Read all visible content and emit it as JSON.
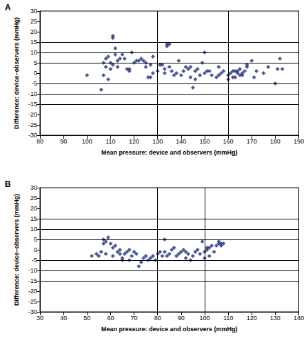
{
  "chart_data": [
    {
      "type": "scatter",
      "title": "A",
      "xlabel": "Mean pressure: device and observers (mmHg)",
      "ylabel": "Difference: device–observers (mmHg)",
      "x": [
        100,
        106,
        107,
        107,
        108,
        108,
        109,
        109,
        110,
        110,
        111,
        111,
        111,
        112,
        112,
        113,
        113,
        114,
        115,
        116,
        117,
        118,
        118,
        119,
        120,
        121,
        122,
        123,
        124,
        125,
        125,
        126,
        127,
        127,
        128,
        128,
        130,
        131,
        132,
        133,
        133,
        134,
        134,
        135,
        135,
        136,
        137,
        138,
        139,
        140,
        141,
        142,
        143,
        144,
        144,
        145,
        146,
        146,
        147,
        148,
        149,
        150,
        150,
        151,
        152,
        153,
        155,
        156,
        156,
        157,
        158,
        160,
        160,
        161,
        162,
        162,
        163,
        163,
        164,
        164,
        165,
        165,
        166,
        166,
        167,
        168,
        168,
        170,
        171,
        172,
        175,
        177,
        180,
        181,
        182,
        183
      ],
      "values": [
        -1,
        -8,
        -1,
        5,
        3,
        7,
        -3,
        8,
        5,
        2,
        4,
        17,
        18,
        12,
        9,
        6,
        3,
        7,
        9,
        7,
        2,
        1,
        2,
        10,
        5,
        6,
        6,
        7,
        6,
        3,
        5,
        -2,
        -2,
        4,
        8,
        0,
        1,
        4,
        4,
        2,
        0,
        14,
        13,
        14,
        3,
        1,
        -1,
        0,
        6,
        -1,
        1,
        3,
        2,
        3,
        -2,
        -7,
        1,
        -3,
        2,
        -1,
        5,
        10,
        0,
        1,
        1,
        -1,
        -2,
        -1,
        3,
        0,
        1,
        -1,
        -3,
        0,
        1,
        -2,
        1,
        -2,
        0,
        1,
        -1,
        2,
        0,
        -1,
        1,
        4,
        3,
        6,
        -2,
        1,
        0,
        3,
        -5,
        2,
        7,
        2
      ],
      "color": "#1f2f7a",
      "marker": "diamond",
      "grid": false,
      "xlim": [
        80,
        190
      ],
      "xticks": [
        80,
        90,
        100,
        110,
        120,
        130,
        140,
        150,
        160,
        170,
        180,
        190
      ],
      "ylim": [
        -30,
        30
      ],
      "yticks": [
        -30,
        -25,
        -20,
        -15,
        -10,
        -5,
        0,
        5,
        10,
        15,
        20,
        25,
        30
      ],
      "vlines": [
        130,
        160
      ],
      "hlines": [
        15,
        10,
        5,
        -5,
        -10,
        -15
      ]
    },
    {
      "type": "scatter",
      "title": "B",
      "xlabel": "Mean pressure: device and observers (mmHg)",
      "ylabel": "Difference: device–observers (mmHg)",
      "x": [
        52,
        54,
        55,
        56,
        57,
        57,
        58,
        58,
        59,
        60,
        61,
        61,
        62,
        63,
        64,
        64,
        65,
        65,
        66,
        67,
        68,
        68,
        69,
        70,
        71,
        72,
        73,
        74,
        75,
        76,
        77,
        78,
        79,
        80,
        81,
        82,
        83,
        83,
        84,
        85,
        86,
        87,
        88,
        89,
        90,
        91,
        92,
        92,
        93,
        94,
        95,
        96,
        97,
        98,
        99,
        100,
        100,
        101,
        101,
        102,
        102,
        103,
        104,
        105,
        106,
        106,
        107,
        107,
        108
      ],
      "values": [
        -3,
        -2,
        -3,
        -1,
        3,
        5,
        -2,
        4,
        6,
        3,
        -3,
        1,
        2,
        -1,
        0,
        -2,
        -5,
        -4,
        -2,
        -1,
        0,
        -5,
        -3,
        -1,
        -2,
        -8,
        -6,
        -4,
        -3,
        -5,
        -4,
        -3,
        -5,
        -2,
        -1,
        -3,
        5,
        -1,
        -3,
        -2,
        0,
        1,
        -3,
        -2,
        -1,
        0,
        -4,
        -1,
        -2,
        -5,
        -3,
        -1,
        0,
        -2,
        4,
        -4,
        -1,
        0,
        1,
        1,
        -3,
        2,
        -1,
        2,
        3,
        4,
        3,
        2,
        3
      ],
      "color": "#1f2f7a",
      "marker": "diamond",
      "grid": false,
      "xlim": [
        30,
        140
      ],
      "xticks": [
        30,
        40,
        50,
        60,
        70,
        80,
        90,
        100,
        110,
        120,
        130,
        140
      ],
      "ylim": [
        -30,
        30
      ],
      "yticks": [
        -30,
        -25,
        -20,
        -15,
        -10,
        -5,
        0,
        5,
        10,
        15,
        20,
        25,
        30
      ],
      "vlines": [
        80,
        100
      ],
      "hlines": [
        15,
        10,
        5,
        -5,
        -10,
        -15
      ]
    }
  ]
}
